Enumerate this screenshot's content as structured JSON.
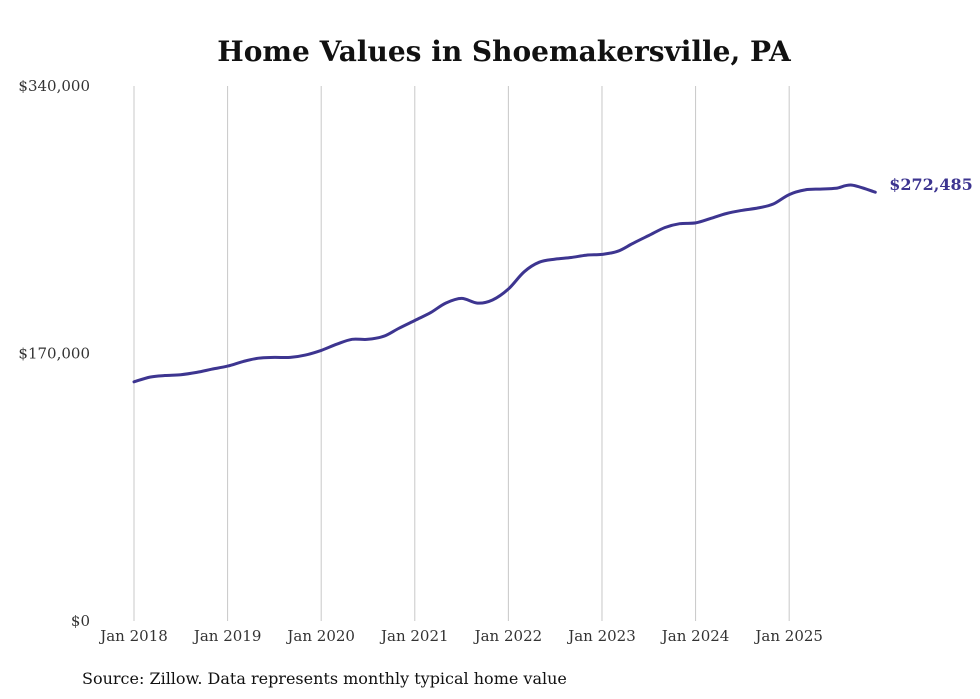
{
  "chart_data": {
    "type": "line",
    "title": "Home Values in Shoemakersville, PA",
    "xlabel": "",
    "ylabel": "",
    "ylim": [
      0,
      340000
    ],
    "y_ticks": [
      {
        "value": 0,
        "label": "$0"
      },
      {
        "value": 170000,
        "label": "$170,000"
      },
      {
        "value": 340000,
        "label": "$340,000"
      }
    ],
    "x_ticks": [
      {
        "value": 2018.0,
        "label": "Jan 2018"
      },
      {
        "value": 2019.0,
        "label": "Jan 2019"
      },
      {
        "value": 2020.0,
        "label": "Jan 2020"
      },
      {
        "value": 2021.0,
        "label": "Jan 2021"
      },
      {
        "value": 2022.0,
        "label": "Jan 2022"
      },
      {
        "value": 2023.0,
        "label": "Jan 2023"
      },
      {
        "value": 2024.0,
        "label": "Jan 2024"
      },
      {
        "value": 2025.0,
        "label": "Jan 2025"
      }
    ],
    "xlim": [
      2018.0,
      2025.917
    ],
    "grid": "vertical",
    "series": [
      {
        "name": "Typical home value",
        "color": "#3d3590",
        "x": [
          2018.0,
          2018.17,
          2018.33,
          2018.5,
          2018.67,
          2018.83,
          2019.0,
          2019.17,
          2019.33,
          2019.5,
          2019.67,
          2019.83,
          2020.0,
          2020.17,
          2020.33,
          2020.5,
          2020.67,
          2020.83,
          2021.0,
          2021.17,
          2021.33,
          2021.5,
          2021.67,
          2021.83,
          2022.0,
          2022.17,
          2022.33,
          2022.5,
          2022.67,
          2022.83,
          2023.0,
          2023.17,
          2023.33,
          2023.5,
          2023.67,
          2023.83,
          2024.0,
          2024.17,
          2024.33,
          2024.5,
          2024.67,
          2024.83,
          2025.0,
          2025.17,
          2025.33,
          2025.5,
          2025.67,
          2025.92
        ],
        "values": [
          152000,
          155000,
          156000,
          156500,
          158000,
          160000,
          162000,
          165000,
          167000,
          167500,
          167500,
          169000,
          172000,
          176000,
          179000,
          179000,
          181000,
          186000,
          191000,
          196000,
          202000,
          205000,
          202000,
          204000,
          211000,
          222000,
          228000,
          230000,
          231000,
          232500,
          233000,
          235000,
          240000,
          245000,
          250000,
          252500,
          253000,
          256000,
          259000,
          261000,
          262500,
          265000,
          271000,
          274000,
          274500,
          275000,
          277000,
          272485
        ]
      }
    ],
    "end_label": "$272,485",
    "source": "Source: Zillow. Data represents monthly typical home value"
  }
}
